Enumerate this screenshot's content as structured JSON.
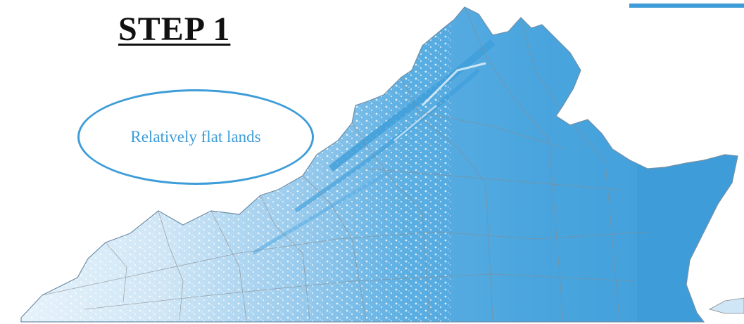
{
  "step": {
    "title": "STEP 1"
  },
  "callout": {
    "text": "Relatively flat lands"
  },
  "map": {
    "region": "Virginia",
    "fill_color": "#3e9dd8",
    "light_fill_color": "#d6ebf8",
    "border_color": "#8a8a8a"
  },
  "accent": {
    "color": "#3e9dd8"
  }
}
